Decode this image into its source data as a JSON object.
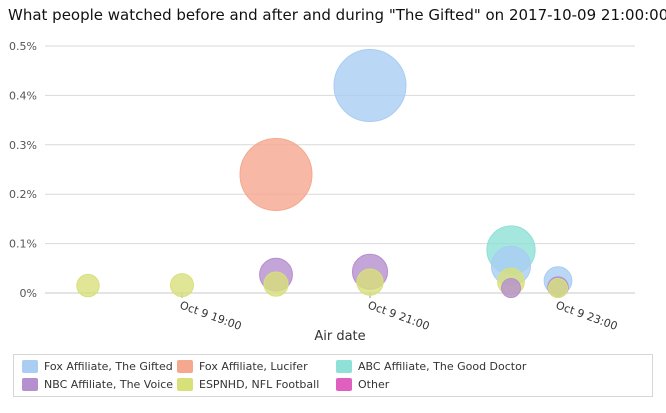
{
  "chart_data": {
    "type": "scatter",
    "title": "What people watched before and after and during \"The Gifted\" on 2017-10-09 21:00:00",
    "xlabel": "Air date",
    "ylabel": "",
    "x_ticks": [
      "Oct 9 19:00",
      "Oct 9 21:00",
      "Oct 9 23:00"
    ],
    "y_ticks": [
      "0%",
      "0.1%",
      "0.2%",
      "0.3%",
      "0.4%",
      "0.5%"
    ],
    "ylim": [
      0,
      0.5
    ],
    "grid": true,
    "legend_position": "bottom",
    "series": [
      {
        "name": "Fox Affiliate, The Gifted",
        "color": "#a9cdf3",
        "points": [
          {
            "x": "Oct 9 21:00",
            "y": 0.42
          },
          {
            "x": "Oct 9 22:30",
            "y": 0.055
          },
          {
            "x": "Oct 9 23:00",
            "y": 0.025
          }
        ]
      },
      {
        "name": "Fox Affiliate, Lucifer",
        "color": "#f5a88e",
        "points": [
          {
            "x": "Oct 9 20:00",
            "y": 0.24
          }
        ]
      },
      {
        "name": "ABC Affiliate, The Good Doctor",
        "color": "#8fe0d6",
        "points": [
          {
            "x": "Oct 9 22:30",
            "y": 0.087
          }
        ]
      },
      {
        "name": "NBC Affiliate, The Voice",
        "color": "#b58fce",
        "points": [
          {
            "x": "Oct 9 20:00",
            "y": 0.037
          },
          {
            "x": "Oct 9 21:00",
            "y": 0.043
          },
          {
            "x": "Oct 9 22:30",
            "y": 0.01
          },
          {
            "x": "Oct 9 23:00",
            "y": 0.012
          }
        ]
      },
      {
        "name": "ESPNHD, NFL Football",
        "color": "#d8e07a",
        "points": [
          {
            "x": "Oct 9 18:00",
            "y": 0.015
          },
          {
            "x": "Oct 9 19:00",
            "y": 0.016
          },
          {
            "x": "Oct 9 20:00",
            "y": 0.018
          },
          {
            "x": "Oct 9 21:00",
            "y": 0.022
          },
          {
            "x": "Oct 9 22:30",
            "y": 0.023
          },
          {
            "x": "Oct 9 23:00",
            "y": 0.01
          }
        ]
      },
      {
        "name": "Other",
        "color": "#e060c0",
        "points": []
      }
    ]
  }
}
